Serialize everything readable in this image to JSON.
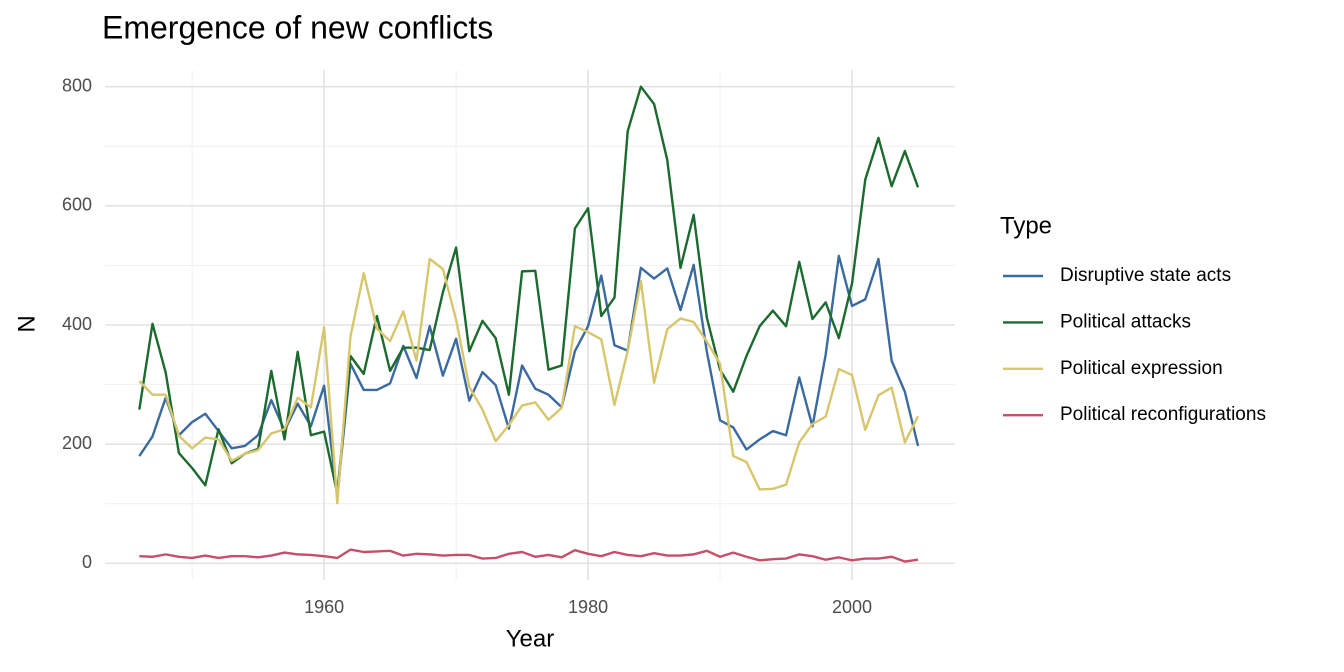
{
  "chart_data": {
    "type": "line",
    "title": "Emergence of new conflicts",
    "x_label": "Year",
    "y_label": "N",
    "legend_title": "Type",
    "legend_position": "right",
    "grid": true,
    "x": [
      1946,
      1947,
      1948,
      1949,
      1950,
      1951,
      1952,
      1953,
      1954,
      1955,
      1956,
      1957,
      1958,
      1959,
      1960,
      1961,
      1962,
      1963,
      1964,
      1965,
      1966,
      1967,
      1968,
      1969,
      1970,
      1971,
      1972,
      1973,
      1974,
      1975,
      1976,
      1977,
      1978,
      1979,
      1980,
      1981,
      1982,
      1983,
      1984,
      1985,
      1986,
      1987,
      1988,
      1989,
      1990,
      1991,
      1992,
      1993,
      1994,
      1995,
      1996,
      1997,
      1998,
      1999,
      2000,
      2001,
      2002,
      2003,
      2004,
      2005
    ],
    "xlim": [
      1943.4,
      2007.8
    ],
    "xticks": [
      1960,
      1980,
      2000
    ],
    "ylim": [
      -28,
      828
    ],
    "yticks": [
      0,
      200,
      400,
      600,
      800
    ],
    "series": [
      {
        "name": "Disruptive state acts",
        "color": "#3b6aa0",
        "values": [
          180,
          213,
          278,
          215,
          237,
          251,
          222,
          193,
          197,
          215,
          274,
          223,
          268,
          230,
          298,
          112,
          335,
          291,
          291,
          302,
          365,
          311,
          398,
          315,
          377,
          273,
          321,
          299,
          226,
          332,
          293,
          283,
          262,
          356,
          398,
          483,
          366,
          357,
          496,
          478,
          495,
          425,
          501,
          355,
          240,
          228,
          191,
          208,
          222,
          215,
          312,
          230,
          350,
          516,
          432,
          443,
          511,
          340,
          288,
          197
        ]
      },
      {
        "name": "Political attacks",
        "color": "#1b6b2e",
        "values": [
          258,
          402,
          320,
          185,
          160,
          131,
          225,
          168,
          184,
          192,
          323,
          208,
          355,
          215,
          221,
          117,
          348,
          318,
          415,
          323,
          362,
          362,
          358,
          455,
          530,
          356,
          407,
          378,
          283,
          490,
          491,
          325,
          332,
          562,
          596,
          415,
          446,
          725,
          800,
          771,
          677,
          496,
          585,
          412,
          325,
          288,
          348,
          398,
          424,
          398,
          506,
          410,
          438,
          378,
          470,
          644,
          714,
          633,
          692,
          631
        ]
      },
      {
        "name": "Political expression",
        "color": "#d8c66c",
        "values": [
          306,
          283,
          283,
          214,
          193,
          211,
          208,
          172,
          184,
          190,
          218,
          225,
          278,
          262,
          396,
          101,
          381,
          487,
          394,
          373,
          423,
          340,
          511,
          494,
          409,
          296,
          258,
          205,
          232,
          265,
          270,
          241,
          261,
          398,
          388,
          376,
          266,
          356,
          474,
          303,
          393,
          411,
          405,
          372,
          335,
          180,
          170,
          124,
          125,
          132,
          203,
          234,
          246,
          326,
          316,
          224,
          282,
          295,
          203,
          247
        ]
      },
      {
        "name": "Political reconfigurations",
        "color": "#c64f69",
        "values": [
          12,
          11,
          15,
          11,
          9,
          13,
          9,
          12,
          12,
          10,
          13,
          18,
          15,
          14,
          12,
          9,
          23,
          19,
          20,
          21,
          13,
          16,
          15,
          13,
          14,
          14,
          8,
          9,
          16,
          19,
          11,
          14,
          10,
          22,
          16,
          12,
          19,
          14,
          12,
          17,
          13,
          13,
          15,
          21,
          11,
          18,
          11,
          5,
          7,
          8,
          15,
          12,
          6,
          10,
          5,
          8,
          8,
          11,
          3,
          6
        ]
      }
    ]
  }
}
